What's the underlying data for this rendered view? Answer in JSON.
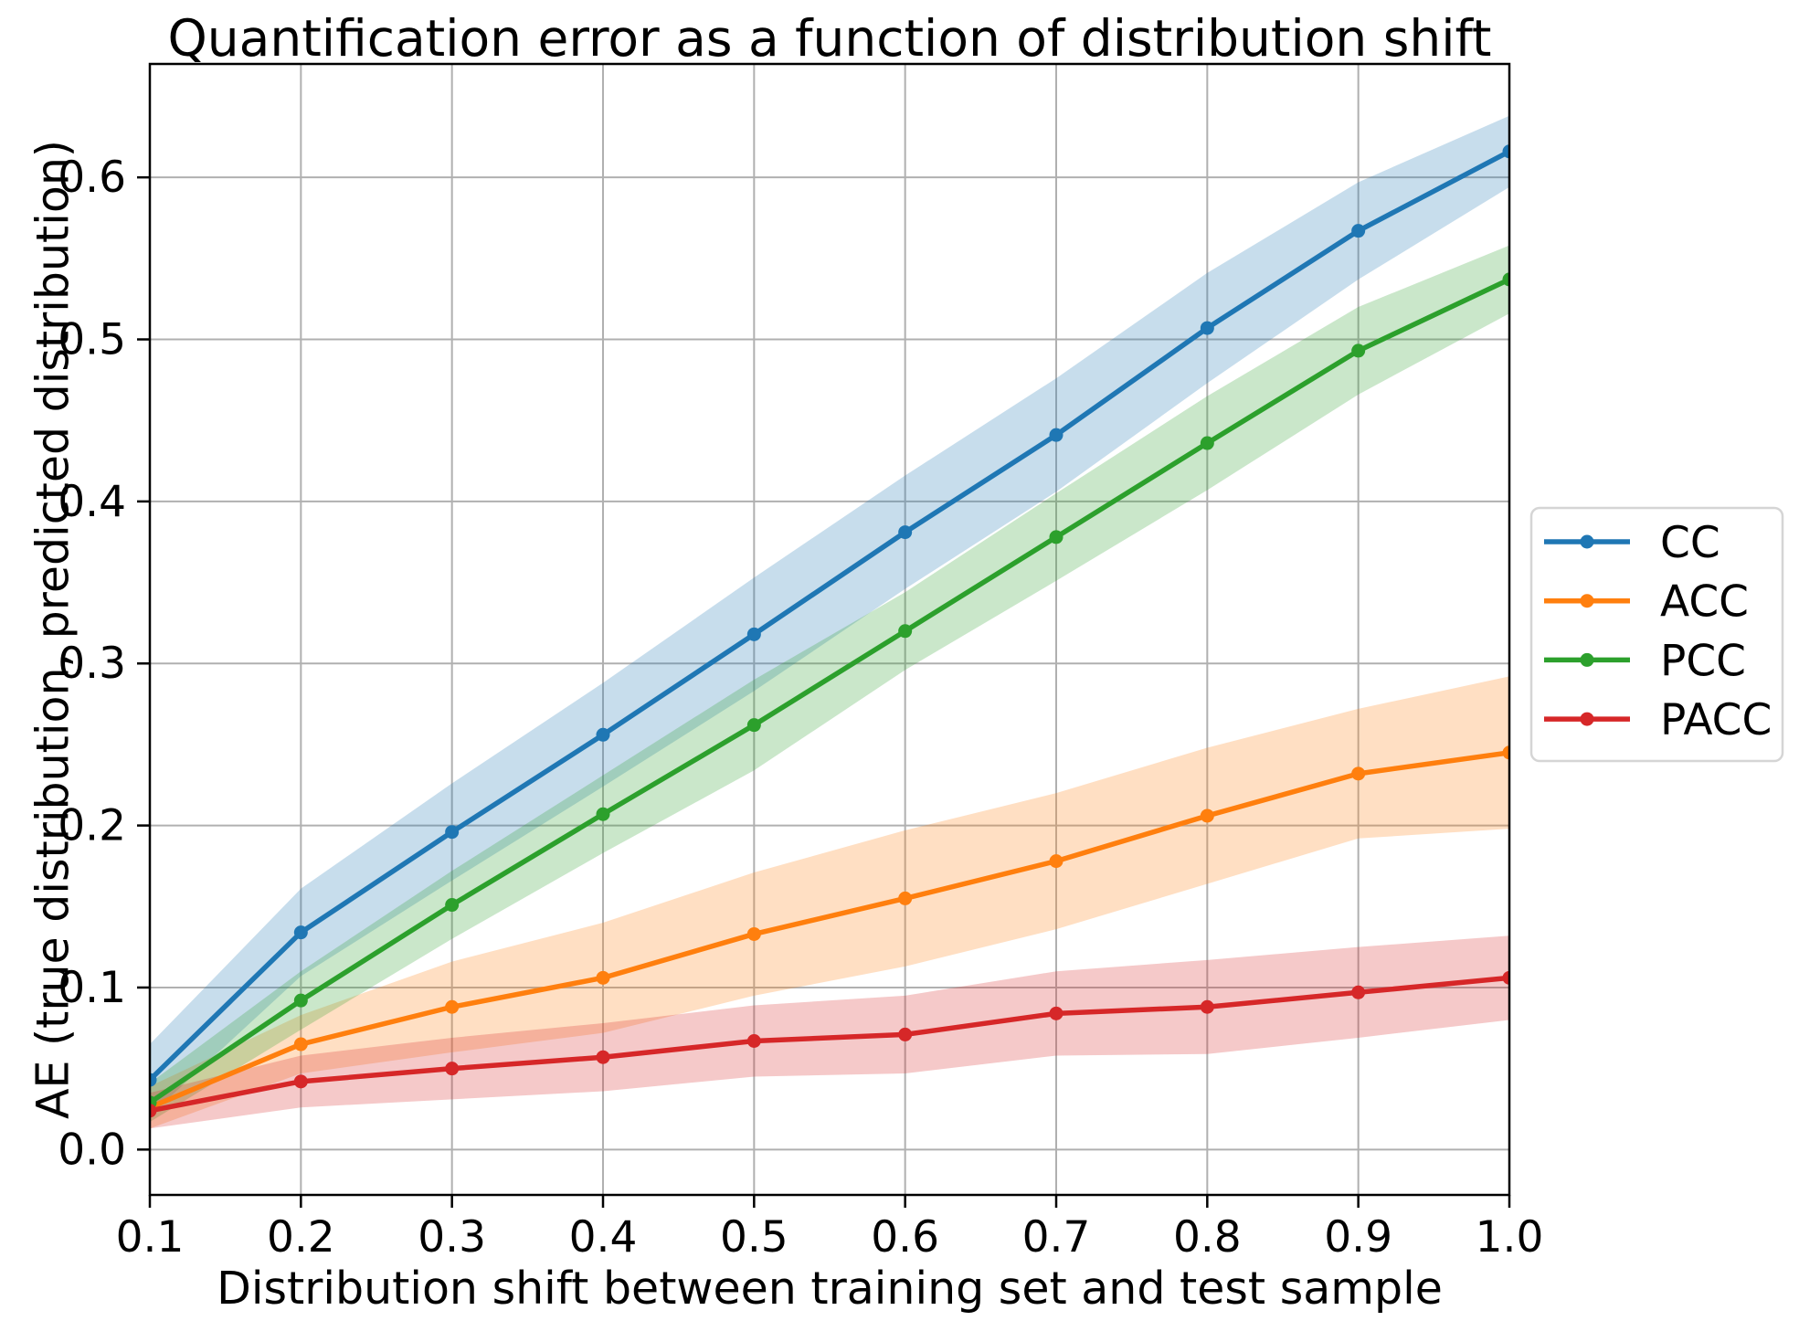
{
  "title": "Quantification error as a function of distribution shift",
  "axes": {
    "xlabel": "Distribution shift between training set and test sample",
    "ylabel": "AE (true distribution, predicted distribution)",
    "x_ticks": [
      0.1,
      0.2,
      0.3,
      0.4,
      0.5,
      0.6,
      0.7,
      0.8,
      0.9,
      1.0
    ],
    "x_tick_labels": [
      "0.1",
      "0.2",
      "0.3",
      "0.4",
      "0.5",
      "0.6",
      "0.7",
      "0.8",
      "0.9",
      "1.0"
    ],
    "y_ticks": [
      0.0,
      0.1,
      0.2,
      0.3,
      0.4,
      0.5,
      0.6
    ],
    "y_tick_labels": [
      "0.0",
      "0.1",
      "0.2",
      "0.3",
      "0.4",
      "0.5",
      "0.6"
    ]
  },
  "legend": {
    "items": [
      "CC",
      "ACC",
      "PCC",
      "PACC"
    ]
  },
  "chart_data": {
    "type": "line",
    "title": "Quantification error as a function of distribution shift",
    "xlabel": "Distribution shift between training set and test sample",
    "ylabel": "AE (true distribution, predicted distribution)",
    "x": [
      0.1,
      0.2,
      0.3,
      0.4,
      0.5,
      0.6,
      0.7,
      0.8,
      0.9,
      1.0
    ],
    "xlim": [
      0.1,
      1.0
    ],
    "ylim": [
      -0.028,
      0.67
    ],
    "grid": true,
    "grid_color": "#b0b0b0",
    "legend_position": "right-outside",
    "band_alpha": 0.25,
    "marker": "circle",
    "series": [
      {
        "name": "CC",
        "color": "#1f77b4",
        "values": [
          0.043,
          0.134,
          0.196,
          0.256,
          0.318,
          0.381,
          0.441,
          0.507,
          0.567,
          0.616
        ],
        "band_halfwidth": [
          0.022,
          0.027,
          0.03,
          0.032,
          0.035,
          0.035,
          0.035,
          0.034,
          0.03,
          0.022
        ]
      },
      {
        "name": "ACC",
        "color": "#ff7f0e",
        "values": [
          0.026,
          0.065,
          0.088,
          0.106,
          0.133,
          0.155,
          0.178,
          0.206,
          0.232,
          0.245
        ],
        "band_halfwidth": [
          0.013,
          0.018,
          0.028,
          0.034,
          0.038,
          0.042,
          0.042,
          0.042,
          0.04,
          0.047
        ]
      },
      {
        "name": "PCC",
        "color": "#2ca02c",
        "values": [
          0.029,
          0.092,
          0.151,
          0.207,
          0.262,
          0.32,
          0.378,
          0.436,
          0.493,
          0.537
        ],
        "band_halfwidth": [
          0.012,
          0.018,
          0.021,
          0.024,
          0.028,
          0.024,
          0.027,
          0.029,
          0.027,
          0.021
        ]
      },
      {
        "name": "PACC",
        "color": "#d62728",
        "values": [
          0.024,
          0.042,
          0.05,
          0.057,
          0.067,
          0.071,
          0.084,
          0.088,
          0.097,
          0.106
        ],
        "band_halfwidth": [
          0.011,
          0.016,
          0.019,
          0.021,
          0.022,
          0.024,
          0.026,
          0.029,
          0.028,
          0.026
        ]
      }
    ]
  }
}
